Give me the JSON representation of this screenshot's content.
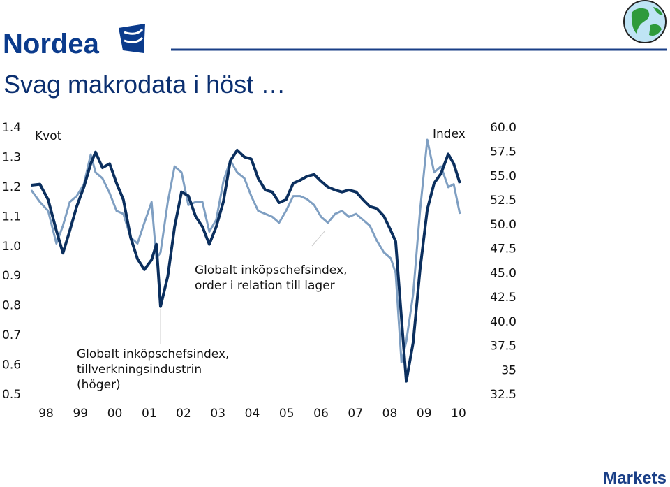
{
  "header": {
    "logo": "Nordea"
  },
  "footer": {
    "brand": "Markets"
  },
  "chart_data": {
    "type": "line",
    "title": "Svag makrodata i höst …",
    "y_label": "Kvot",
    "y2_label": "Index",
    "annotations": [
      "Globalt inköpschefsindex, tillverkningsindustrin (höger)",
      "Globalt inköpschefsindex, order i relation till lager"
    ],
    "x": [
      1997.57,
      1997.82,
      1998.06,
      1998.3,
      1998.49,
      1998.69,
      1998.89,
      1999.1,
      1999.3,
      1999.44,
      1999.64,
      1999.85,
      2000.05,
      2000.25,
      2000.46,
      2000.66,
      2000.86,
      2001.07,
      2001.21,
      2001.33,
      2001.54,
      2001.74,
      2001.94,
      2002.14,
      2002.35,
      2002.55,
      2002.75,
      2002.95,
      2003.16,
      2003.36,
      2003.56,
      2003.77,
      2003.97,
      2004.17,
      2004.38,
      2004.58,
      2004.78,
      2004.98,
      2005.19,
      2005.39,
      2005.59,
      2005.8,
      2006.0,
      2006.2,
      2006.41,
      2006.61,
      2006.81,
      2007.02,
      2007.22,
      2007.42,
      2007.62,
      2007.83,
      2008.03,
      2008.17,
      2008.34,
      2008.48,
      2008.68,
      2008.88,
      2009.09,
      2009.29,
      2009.49,
      2009.7,
      2009.86,
      2010.04
    ],
    "series": [
      {
        "name": "Globalt inköpschefsindex, order i relation till lager",
        "color": "#7f9fc2",
        "axis": "y",
        "values": [
          1.19,
          1.15,
          1.12,
          1.01,
          1.07,
          1.15,
          1.17,
          1.21,
          1.31,
          1.25,
          1.23,
          1.18,
          1.12,
          1.11,
          1.03,
          1.01,
          1.08,
          1.15,
          0.96,
          0.98,
          1.15,
          1.27,
          1.25,
          1.14,
          1.15,
          1.15,
          1.05,
          1.09,
          1.22,
          1.29,
          1.25,
          1.23,
          1.17,
          1.12,
          1.11,
          1.1,
          1.08,
          1.12,
          1.17,
          1.17,
          1.16,
          1.14,
          1.1,
          1.08,
          1.11,
          1.12,
          1.1,
          1.11,
          1.09,
          1.07,
          1.02,
          0.98,
          0.96,
          0.91,
          0.61,
          0.68,
          0.84,
          1.12,
          1.36,
          1.25,
          1.27,
          1.2,
          1.21,
          1.11
        ]
      },
      {
        "name": "Globalt inköpschefsindex, tillverkningsindustrin (höger)",
        "color": "#0b2f5e",
        "axis": "y2",
        "values": [
          54.1,
          54.2,
          52.6,
          49.4,
          47.1,
          49.4,
          51.9,
          53.9,
          56.3,
          57.5,
          55.9,
          56.3,
          54.3,
          52.6,
          48.7,
          46.5,
          45.4,
          46.4,
          48.0,
          41.6,
          44.7,
          49.8,
          53.4,
          53.0,
          50.9,
          49.8,
          48.0,
          49.8,
          52.4,
          56.6,
          57.7,
          57.0,
          56.8,
          54.8,
          53.6,
          53.4,
          52.3,
          52.6,
          54.3,
          54.6,
          55.0,
          55.2,
          54.5,
          53.9,
          53.6,
          53.4,
          53.6,
          53.4,
          52.6,
          51.9,
          51.7,
          50.9,
          49.4,
          48.3,
          40.4,
          33.9,
          37.9,
          45.4,
          51.6,
          54.3,
          55.3,
          57.3,
          56.3,
          54.3
        ]
      }
    ],
    "xlim": [
      1997.5,
      2010.5
    ],
    "xticks": [
      {
        "value": 1998,
        "label": "98"
      },
      {
        "value": 1999,
        "label": "99"
      },
      {
        "value": 2000,
        "label": "00"
      },
      {
        "value": 2001,
        "label": "01"
      },
      {
        "value": 2002,
        "label": "02"
      },
      {
        "value": 2003,
        "label": "03"
      },
      {
        "value": 2004,
        "label": "04"
      },
      {
        "value": 2005,
        "label": "05"
      },
      {
        "value": 2006,
        "label": "06"
      },
      {
        "value": 2007,
        "label": "07"
      },
      {
        "value": 2008,
        "label": "08"
      },
      {
        "value": 2009,
        "label": "09"
      },
      {
        "value": 2010,
        "label": "10"
      }
    ],
    "ylim": [
      0.5,
      1.4
    ],
    "yticks": [
      0.5,
      0.6,
      0.7,
      0.8,
      0.9,
      {
        "value": 1,
        "label": "1.0"
      },
      1.1,
      1.2,
      1.3,
      1.4
    ],
    "y2lim": [
      32.5,
      60
    ],
    "y2ticks": [
      32.5,
      35,
      {
        "value": 37.5,
        "label": "37.5"
      },
      {
        "value": 40,
        "label": "40.0"
      },
      42.5,
      {
        "value": 45,
        "label": "45.0"
      },
      47.5,
      {
        "value": 50,
        "label": "50.0"
      },
      52.5,
      {
        "value": 55,
        "label": "55.0"
      },
      57.5,
      {
        "value": 60,
        "label": "60.0"
      }
    ],
    "grid": false
  }
}
